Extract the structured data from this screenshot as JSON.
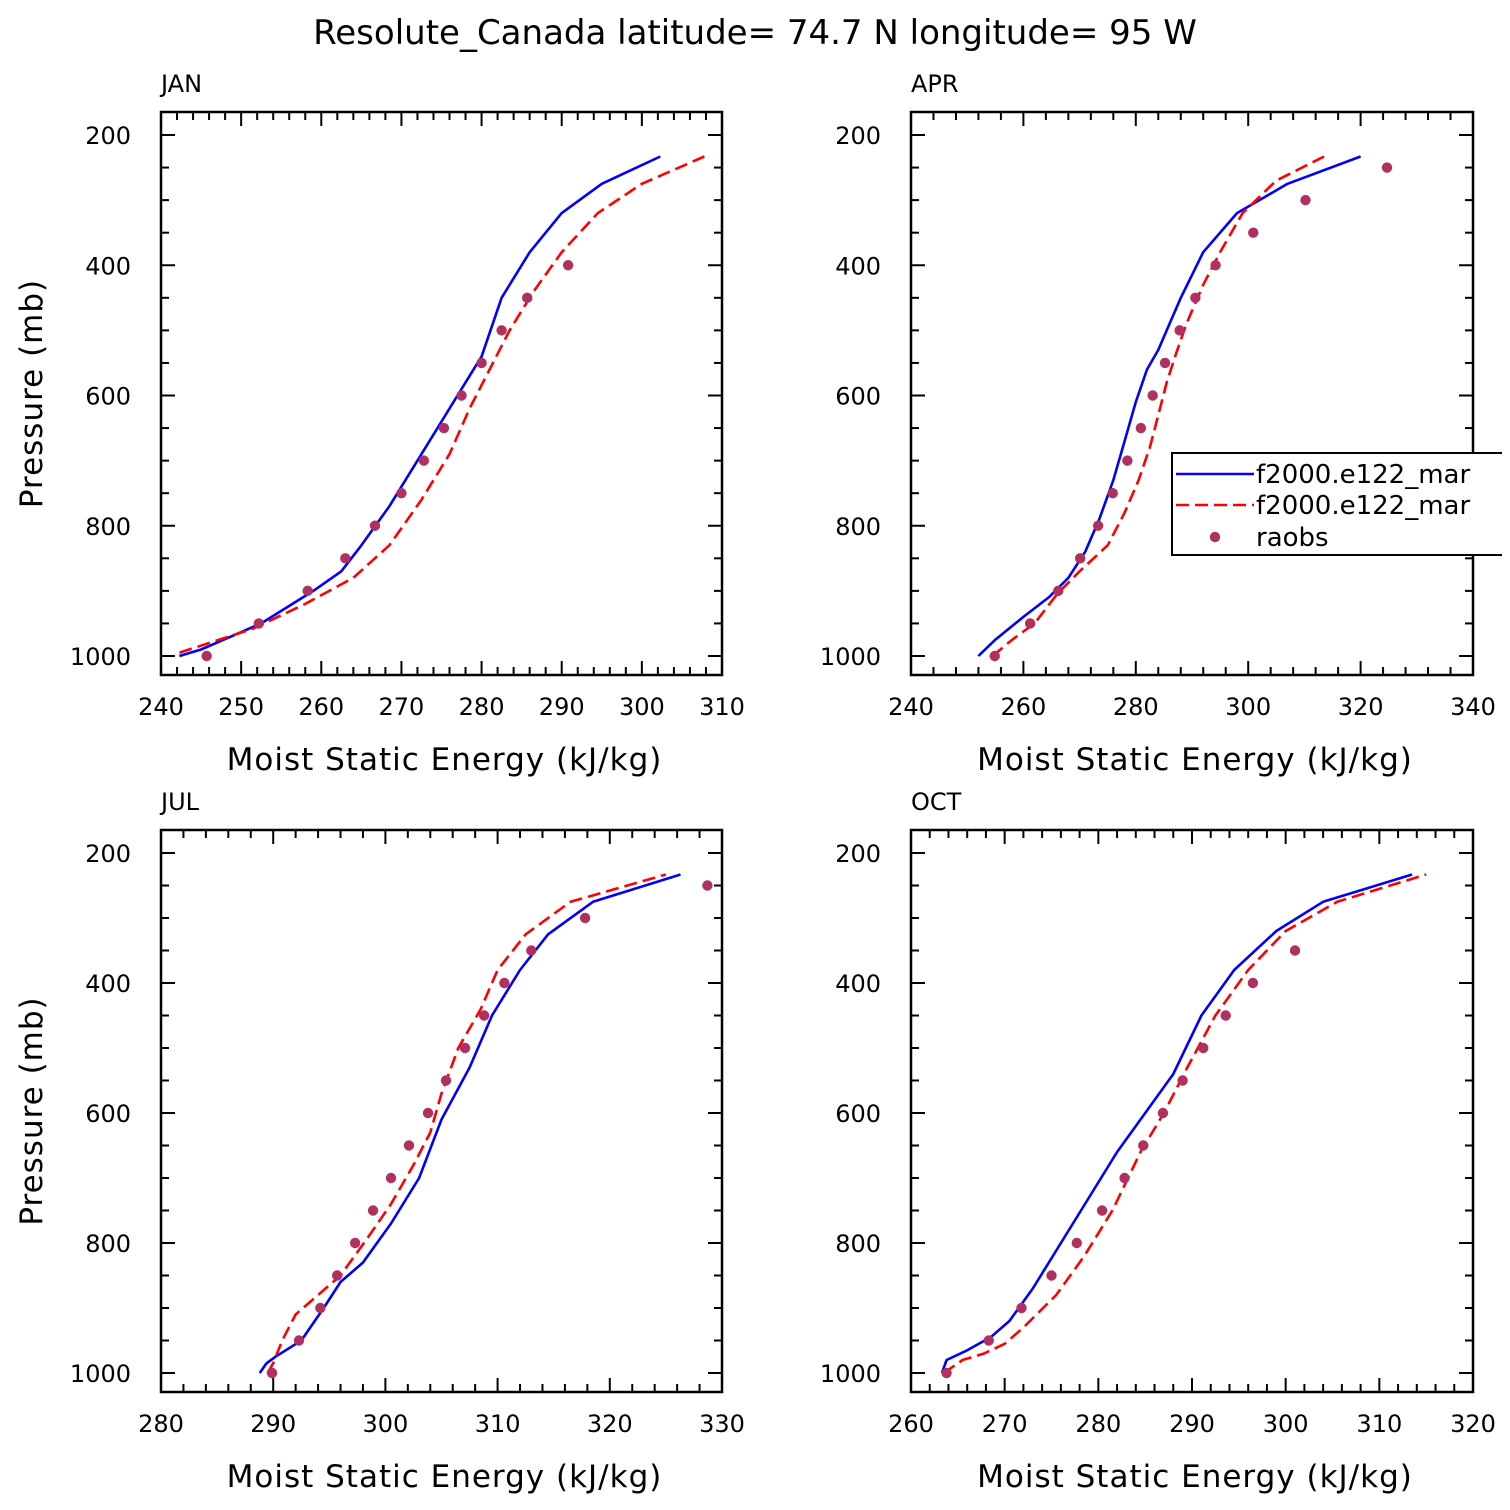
{
  "figure": {
    "title": "Resolute_Canada  latitude= 74.7 N longitude= 95 W"
  },
  "legend": {
    "entries": [
      {
        "label": "f2000.e122_mar",
        "style": "solid",
        "color": "#0000ff"
      },
      {
        "label": "f2000.e122_mar",
        "style": "dashed",
        "color": "#ff0000"
      },
      {
        "label": "raobs",
        "style": "dot",
        "color": "#b03060"
      }
    ]
  },
  "chart_data": [
    {
      "type": "line",
      "title": "JAN",
      "xlabel": "Moist Static Energy (kJ/kg)",
      "ylabel": "Pressure (mb)",
      "xlim": [
        240,
        310
      ],
      "ylim": [
        1000,
        200
      ],
      "xticks": [
        240,
        250,
        260,
        270,
        280,
        290,
        300,
        310
      ],
      "yticks": [
        200,
        400,
        600,
        800,
        1000
      ],
      "series": [
        {
          "name": "f2000.e122_mar (solid)",
          "color": "#0000ff",
          "style": "solid",
          "points": [
            [
              242.3,
              1000
            ],
            [
              245,
              990
            ],
            [
              252.5,
              950
            ],
            [
              259,
              900
            ],
            [
              262.5,
              870
            ],
            [
              265,
              830
            ],
            [
              268.5,
              770
            ],
            [
              271,
              720
            ],
            [
              274,
              660
            ],
            [
              277,
              600
            ],
            [
              280,
              540
            ],
            [
              282.5,
              450
            ],
            [
              286,
              380
            ],
            [
              290,
              320
            ],
            [
              295,
              275
            ],
            [
              302.3,
              233
            ]
          ]
        },
        {
          "name": "f2000.e122_mar (dashed)",
          "color": "#ff0000",
          "style": "dashed",
          "points": [
            [
              242.3,
              995
            ],
            [
              246,
              980
            ],
            [
              251.5,
              958
            ],
            [
              258,
              920
            ],
            [
              264,
              880
            ],
            [
              268.5,
              830
            ],
            [
              272.5,
              760
            ],
            [
              276,
              690
            ],
            [
              278.5,
              620
            ],
            [
              281,
              560
            ],
            [
              283.5,
              500
            ],
            [
              286.5,
              440
            ],
            [
              290,
              380
            ],
            [
              294.5,
              320
            ],
            [
              300,
              275
            ],
            [
              307.8,
              233
            ]
          ]
        },
        {
          "name": "raobs",
          "color": "#b03060",
          "style": "dot",
          "points": [
            [
              245.7,
              1000
            ],
            [
              252.2,
              950
            ],
            [
              258.3,
              900
            ],
            [
              263,
              850
            ],
            [
              266.7,
              800
            ],
            [
              270,
              750
            ],
            [
              272.8,
              700
            ],
            [
              275.3,
              650
            ],
            [
              277.5,
              600
            ],
            [
              280,
              550
            ],
            [
              282.5,
              500
            ],
            [
              285.7,
              450
            ],
            [
              290.8,
              400
            ]
          ]
        }
      ]
    },
    {
      "type": "line",
      "title": "APR",
      "xlabel": "Moist Static Energy (kJ/kg)",
      "ylabel": "",
      "xlim": [
        240,
        340
      ],
      "ylim": [
        1000,
        200
      ],
      "xticks": [
        240,
        260,
        280,
        300,
        320,
        340
      ],
      "yticks": [
        200,
        400,
        600,
        800,
        1000
      ],
      "series": [
        {
          "name": "f2000.e122_mar (solid)",
          "color": "#0000ff",
          "style": "solid",
          "points": [
            [
              252,
              1000
            ],
            [
              255,
              975
            ],
            [
              260,
              940
            ],
            [
              264.5,
              910
            ],
            [
              268,
              880
            ],
            [
              271,
              840
            ],
            [
              273.5,
              790
            ],
            [
              276,
              730
            ],
            [
              278,
              670
            ],
            [
              280,
              610
            ],
            [
              282,
              560
            ],
            [
              284,
              530
            ],
            [
              286,
              490
            ],
            [
              288,
              450
            ],
            [
              292,
              380
            ],
            [
              298,
              320
            ],
            [
              307,
              275
            ],
            [
              320,
              233
            ]
          ]
        },
        {
          "name": "f2000.e122_mar (dashed)",
          "color": "#ff0000",
          "style": "dashed",
          "points": [
            [
              254.5,
              1000
            ],
            [
              258,
              975
            ],
            [
              262,
              950
            ],
            [
              266,
              905
            ],
            [
              270,
              870
            ],
            [
              275,
              830
            ],
            [
              278,
              780
            ],
            [
              280.5,
              730
            ],
            [
              282.5,
              680
            ],
            [
              284,
              630
            ],
            [
              285.5,
              580
            ],
            [
              287,
              540
            ],
            [
              289,
              490
            ],
            [
              292,
              430
            ],
            [
              295,
              380
            ],
            [
              299,
              320
            ],
            [
              305,
              270
            ],
            [
              313.5,
              233
            ]
          ]
        },
        {
          "name": "raobs",
          "color": "#b03060",
          "style": "dot",
          "points": [
            [
              254.9,
              1000
            ],
            [
              261.2,
              950
            ],
            [
              266.2,
              900
            ],
            [
              270.1,
              850
            ],
            [
              273.3,
              800
            ],
            [
              275.9,
              750
            ],
            [
              278.5,
              700
            ],
            [
              280.9,
              650
            ],
            [
              283,
              600
            ],
            [
              285.2,
              550
            ],
            [
              287.8,
              500
            ],
            [
              290.6,
              450
            ],
            [
              294.2,
              400
            ],
            [
              300.9,
              350
            ],
            [
              310.2,
              300
            ],
            [
              324.7,
              250
            ]
          ]
        }
      ]
    },
    {
      "type": "line",
      "title": "JUL",
      "xlabel": "Moist Static Energy (kJ/kg)",
      "ylabel": "Pressure (mb)",
      "xlim": [
        280,
        330
      ],
      "ylim": [
        1000,
        200
      ],
      "xticks": [
        280,
        290,
        300,
        310,
        320,
        330
      ],
      "yticks": [
        200,
        400,
        600,
        800,
        1000
      ],
      "series": [
        {
          "name": "f2000.e122_mar (solid)",
          "color": "#0000ff",
          "style": "solid",
          "points": [
            [
              288.8,
              1000
            ],
            [
              289.4,
              985
            ],
            [
              290.2,
              975
            ],
            [
              292.5,
              950
            ],
            [
              294.5,
              900
            ],
            [
              296,
              860
            ],
            [
              298,
              830
            ],
            [
              300.5,
              770
            ],
            [
              303,
              700
            ],
            [
              305,
              610
            ],
            [
              307.5,
              530
            ],
            [
              309.5,
              450
            ],
            [
              312,
              380
            ],
            [
              314.5,
              325
            ],
            [
              318.5,
              275
            ],
            [
              326.3,
              233
            ]
          ]
        },
        {
          "name": "f2000.e122_mar (dashed)",
          "color": "#ff0000",
          "style": "dashed",
          "points": [
            [
              289.5,
              1000
            ],
            [
              290,
              985
            ],
            [
              290.8,
              950
            ],
            [
              292,
              910
            ],
            [
              294,
              880
            ],
            [
              296,
              850
            ],
            [
              298.5,
              790
            ],
            [
              300.5,
              740
            ],
            [
              302.5,
              680
            ],
            [
              304,
              630
            ],
            [
              305,
              570
            ],
            [
              306.5,
              500
            ],
            [
              308.5,
              440
            ],
            [
              310,
              380
            ],
            [
              312.5,
              325
            ],
            [
              316.5,
              275
            ],
            [
              325,
              233
            ]
          ]
        },
        {
          "name": "raobs",
          "color": "#b03060",
          "style": "dot",
          "points": [
            [
              289.9,
              1000
            ],
            [
              292.3,
              950
            ],
            [
              294.2,
              900
            ],
            [
              295.7,
              850
            ],
            [
              297.3,
              800
            ],
            [
              298.9,
              750
            ],
            [
              300.5,
              700
            ],
            [
              302.1,
              650
            ],
            [
              303.8,
              600
            ],
            [
              305.4,
              550
            ],
            [
              307.1,
              500
            ],
            [
              308.8,
              450
            ],
            [
              310.6,
              400
            ],
            [
              313,
              350
            ],
            [
              317.8,
              300
            ],
            [
              328.7,
              250
            ]
          ]
        }
      ]
    },
    {
      "type": "line",
      "title": "OCT",
      "xlabel": "Moist Static Energy (kJ/kg)",
      "ylabel": "",
      "xlim": [
        260,
        320
      ],
      "ylim": [
        1000,
        200
      ],
      "xticks": [
        260,
        270,
        280,
        290,
        300,
        310,
        320
      ],
      "yticks": [
        200,
        400,
        600,
        800,
        1000
      ],
      "series": [
        {
          "name": "f2000.e122_mar (solid)",
          "color": "#0000ff",
          "style": "solid",
          "points": [
            [
              263.3,
              1000
            ],
            [
              263.8,
              980
            ],
            [
              266,
              965
            ],
            [
              268.5,
              945
            ],
            [
              270.5,
              920
            ],
            [
              273,
              870
            ],
            [
              276,
              800
            ],
            [
              279,
              730
            ],
            [
              282,
              660
            ],
            [
              285,
              600
            ],
            [
              288,
              540
            ],
            [
              291,
              450
            ],
            [
              294.5,
              380
            ],
            [
              299,
              320
            ],
            [
              304,
              275
            ],
            [
              313.5,
              233
            ]
          ]
        },
        {
          "name": "f2000.e122_mar (dashed)",
          "color": "#ff0000",
          "style": "dashed",
          "points": [
            [
              263.5,
              1000
            ],
            [
              264,
              995
            ],
            [
              265.5,
              980
            ],
            [
              267.8,
              970
            ],
            [
              270,
              955
            ],
            [
              272,
              930
            ],
            [
              275.5,
              880
            ],
            [
              278.5,
              820
            ],
            [
              281.5,
              750
            ],
            [
              284.5,
              660
            ],
            [
              287,
              600
            ],
            [
              289.5,
              530
            ],
            [
              292.5,
              450
            ],
            [
              296,
              380
            ],
            [
              300,
              320
            ],
            [
              305.5,
              275
            ],
            [
              315,
              233
            ]
          ]
        },
        {
          "name": "raobs",
          "color": "#b03060",
          "style": "dot",
          "points": [
            [
              263.8,
              1000
            ],
            [
              268.3,
              950
            ],
            [
              271.8,
              900
            ],
            [
              275,
              850
            ],
            [
              277.7,
              800
            ],
            [
              280.4,
              750
            ],
            [
              282.8,
              700
            ],
            [
              284.8,
              650
            ],
            [
              286.9,
              600
            ],
            [
              289,
              550
            ],
            [
              291.2,
              500
            ],
            [
              293.6,
              450
            ],
            [
              296.5,
              400
            ],
            [
              301,
              350
            ]
          ]
        }
      ]
    }
  ]
}
